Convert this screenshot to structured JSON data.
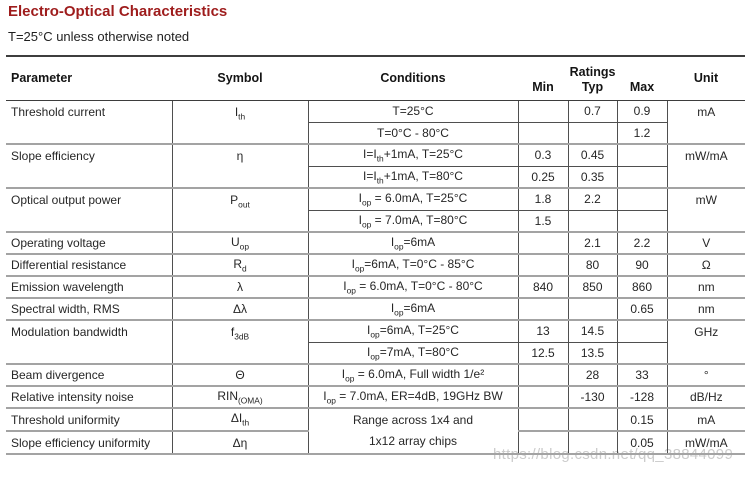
{
  "page": {
    "title": "Electro-Optical Characteristics",
    "subtitle": "T=25°C unless otherwise noted",
    "title_color": "#9e1c1c",
    "watermark": "https://blog.csdn.net/qq_38844099",
    "accent_line_color": "#a3a3a3"
  },
  "table": {
    "headers": {
      "parameter": "Parameter",
      "symbol": "Symbol",
      "conditions": "Conditions",
      "ratings": "Ratings",
      "min": "Min",
      "typ": "Typ",
      "max": "Max",
      "unit": "Unit"
    },
    "rows": [
      {
        "parameter": "Threshold current",
        "symbol": "I<sub>th</sub>",
        "conditions": "T=25°C",
        "min": "",
        "typ": "0.7",
        "max": "0.9",
        "unit": "mA"
      },
      {
        "conditions": "T=0°C - 80°C",
        "min": "",
        "typ": "",
        "max": "1.2"
      },
      {
        "parameter": "Slope efficiency",
        "symbol": "η",
        "conditions": "I=I<sub>th</sub>+1mA, T=25°C",
        "min": "0.3",
        "typ": "0.45",
        "max": "",
        "unit": "mW/mA"
      },
      {
        "conditions": "I=I<sub>th</sub>+1mA, T=80°C",
        "min": "0.25",
        "typ": "0.35",
        "max": ""
      },
      {
        "parameter": "Optical output power",
        "symbol": "P<sub>out</sub>",
        "conditions": "I<sub>op</sub> = 6.0mA, T=25°C",
        "min": "1.8",
        "typ": "2.2",
        "max": "",
        "unit": "mW"
      },
      {
        "conditions": "I<sub>op</sub> = 7.0mA, T=80°C",
        "min": "1.5",
        "typ": "",
        "max": ""
      },
      {
        "parameter": "Operating voltage",
        "symbol": "U<sub>op</sub>",
        "conditions": "I<sub>op</sub>=6mA",
        "min": "",
        "typ": "2.1",
        "max": "2.2",
        "unit": "V"
      },
      {
        "parameter": "Differential resistance",
        "symbol": "R<sub>d</sub>",
        "conditions": "I<sub>op</sub>=6mA, T=0°C - 85°C",
        "min": "",
        "typ": "80",
        "max": "90",
        "unit": "Ω"
      },
      {
        "parameter": "Emission wavelength",
        "symbol": "λ",
        "conditions": "I<sub>op</sub> = 6.0mA, T=0°C - 80°C",
        "min": "840",
        "typ": "850",
        "max": "860",
        "unit": "nm"
      },
      {
        "parameter": "Spectral width, RMS",
        "symbol": "Δλ",
        "conditions": "I<sub>op</sub>=6mA",
        "min": "",
        "typ": "",
        "max": "0.65",
        "unit": "nm"
      },
      {
        "parameter": "Modulation bandwidth",
        "symbol": "f<sub>3dB</sub>",
        "conditions": "I<sub>op</sub>=6mA, T=25°C",
        "min": "13",
        "typ": "14.5",
        "max": "",
        "unit": "GHz"
      },
      {
        "conditions": "I<sub>op</sub>=7mA, T=80°C",
        "min": "12.5",
        "typ": "13.5",
        "max": ""
      },
      {
        "parameter": "Beam divergence",
        "symbol": "Θ",
        "conditions": "I<sub>op</sub> = 6.0mA, Full width 1/e²",
        "min": "",
        "typ": "28",
        "max": "33",
        "unit": "°"
      },
      {
        "parameter": "Relative intensity noise",
        "symbol": "RIN<sub>(OMA)</sub>",
        "conditions": "I<sub>op</sub> = 7.0mA, ER=4dB, 19GHz BW",
        "min": "",
        "typ": "-130",
        "max": "-128",
        "unit": "dB/Hz"
      },
      {
        "parameter": "Threshold uniformity",
        "symbol": "ΔI<sub>th</sub>",
        "conditions": "Range across 1x4 and<br>1x12 array chips",
        "min": "",
        "typ": "",
        "max": "0.15",
        "unit": "mA"
      },
      {
        "parameter": "Slope efficiency uniformity",
        "symbol": "Δη",
        "min": "",
        "typ": "",
        "max": "0.05",
        "unit": "mW/mA"
      }
    ]
  }
}
